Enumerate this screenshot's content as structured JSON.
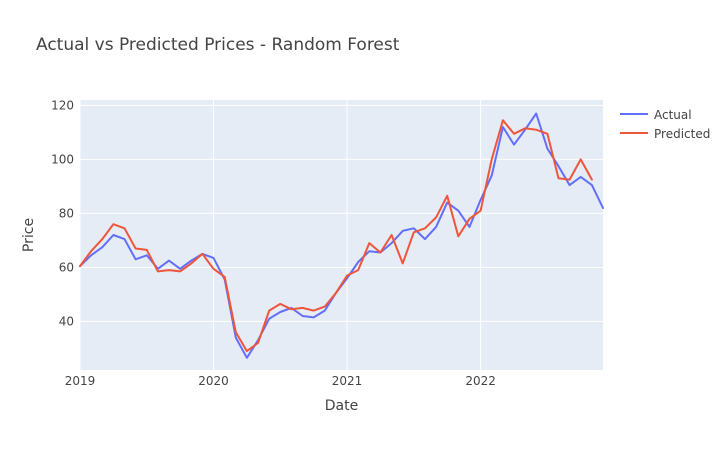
{
  "chart_data": {
    "type": "line",
    "title": "Actual vs Predicted Prices - Random Forest",
    "xlabel": "Date",
    "ylabel": "Price",
    "x_start": "2019-01",
    "x_ticks": [
      "2019",
      "2020",
      "2021",
      "2022"
    ],
    "xlim": [
      "2019-01",
      "2022-12"
    ],
    "ylim": [
      22,
      122
    ],
    "y_ticks": [
      40,
      60,
      80,
      100,
      120
    ],
    "grid": true,
    "legend_position": "top-right",
    "series": [
      {
        "name": "Actual",
        "color": "#636efa",
        "values": [
          60.5,
          64.5,
          67.5,
          72,
          70.5,
          63,
          64.5,
          59.5,
          62.5,
          59.5,
          62.5,
          65,
          63.5,
          55.5,
          34,
          26.5,
          33,
          41,
          43.5,
          45,
          42,
          41.5,
          44,
          50.5,
          56,
          62,
          66,
          65.5,
          69,
          73.5,
          74.5,
          70.5,
          75,
          84,
          81,
          75,
          85,
          94,
          112,
          105.5,
          111,
          117,
          104,
          97.5,
          90.5,
          93.5,
          90.5,
          82
        ]
      },
      {
        "name": "Predicted",
        "color": "#ef553b",
        "values": [
          60.5,
          66,
          70.5,
          76,
          74.5,
          67,
          66.5,
          58.5,
          59,
          58.5,
          61.5,
          65,
          59.5,
          56.5,
          36,
          29,
          32,
          44,
          46.5,
          44.5,
          45,
          44,
          45.5,
          50.5,
          57,
          59,
          69,
          65.5,
          72,
          61.5,
          73,
          74.5,
          78.5,
          86.5,
          71.5,
          78,
          81,
          100,
          114.5,
          109.5,
          111.5,
          111,
          109.5,
          93,
          92.5,
          100,
          92.5
        ]
      }
    ]
  }
}
